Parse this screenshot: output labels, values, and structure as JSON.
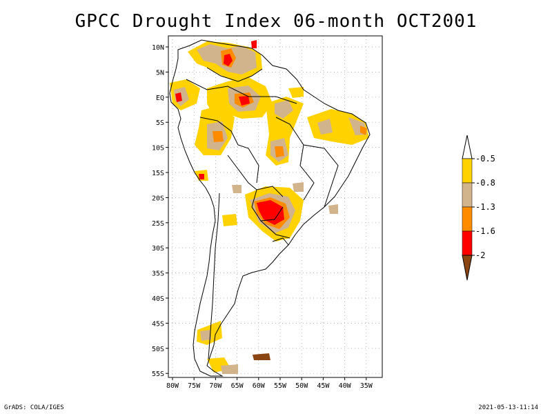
{
  "title": "GPCC Drought Index 06-month OCT2001",
  "axes": {
    "lat_labels": [
      "10N",
      "5N",
      "EQ",
      "5S",
      "10S",
      "15S",
      "20S",
      "25S",
      "30S",
      "35S",
      "40S",
      "45S",
      "50S",
      "55S"
    ],
    "lon_labels": [
      "80W",
      "75W",
      "70W",
      "65W",
      "60W",
      "55W",
      "50W",
      "45W",
      "40W",
      "35W"
    ]
  },
  "legend": {
    "labels": [
      "-0.5",
      "-0.8",
      "-1.3",
      "-1.6",
      "-2"
    ],
    "colors": {
      "above": "#ffffff",
      "yellow": "#ffd200",
      "tan": "#d2b48c",
      "orange": "#ff8c00",
      "red": "#ff0000",
      "brown": "#8b4513"
    }
  },
  "footer": {
    "left": "GrADS: COLA/IGES",
    "right": "2021-05-13-11:14"
  }
}
